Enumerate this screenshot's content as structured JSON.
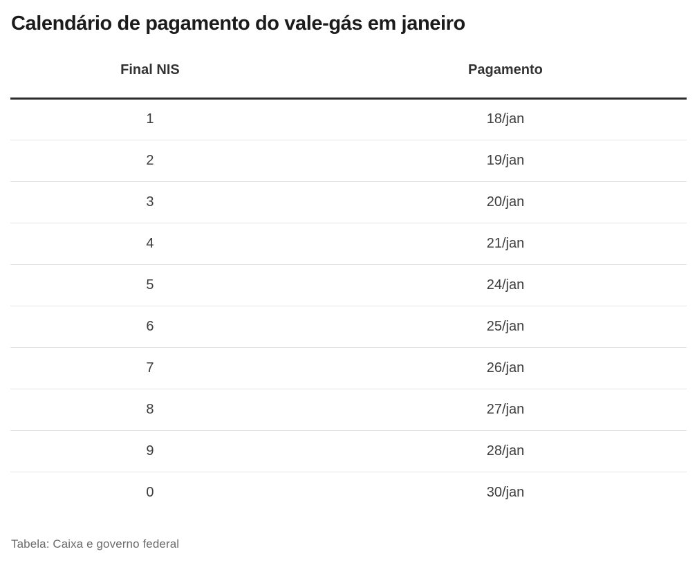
{
  "chart_data": {
    "type": "table",
    "title": "Calendário de pagamento do vale-gás em janeiro",
    "columns": [
      "Final NIS",
      "Pagamento"
    ],
    "rows": [
      [
        "1",
        "18/jan"
      ],
      [
        "2",
        "19/jan"
      ],
      [
        "3",
        "20/jan"
      ],
      [
        "4",
        "21/jan"
      ],
      [
        "5",
        "24/jan"
      ],
      [
        "6",
        "25/jan"
      ],
      [
        "7",
        "26/jan"
      ],
      [
        "8",
        "27/jan"
      ],
      [
        "9",
        "28/jan"
      ],
      [
        "0",
        "30/jan"
      ]
    ],
    "source": "Tabela: Caixa e governo federal",
    "layout": {
      "grid": "horizontal row dividers only",
      "header_rule": "thick dark line under header",
      "alignment": "both columns center-aligned"
    }
  },
  "colors": {
    "background": "#ffffff",
    "title_text": "#1b1b1b",
    "header_text": "#333333",
    "cell_text": "#3c3c3c",
    "header_rule": "#2b2b2b",
    "row_divider": "#e4e4e4",
    "source_text": "#6b6b6b"
  }
}
